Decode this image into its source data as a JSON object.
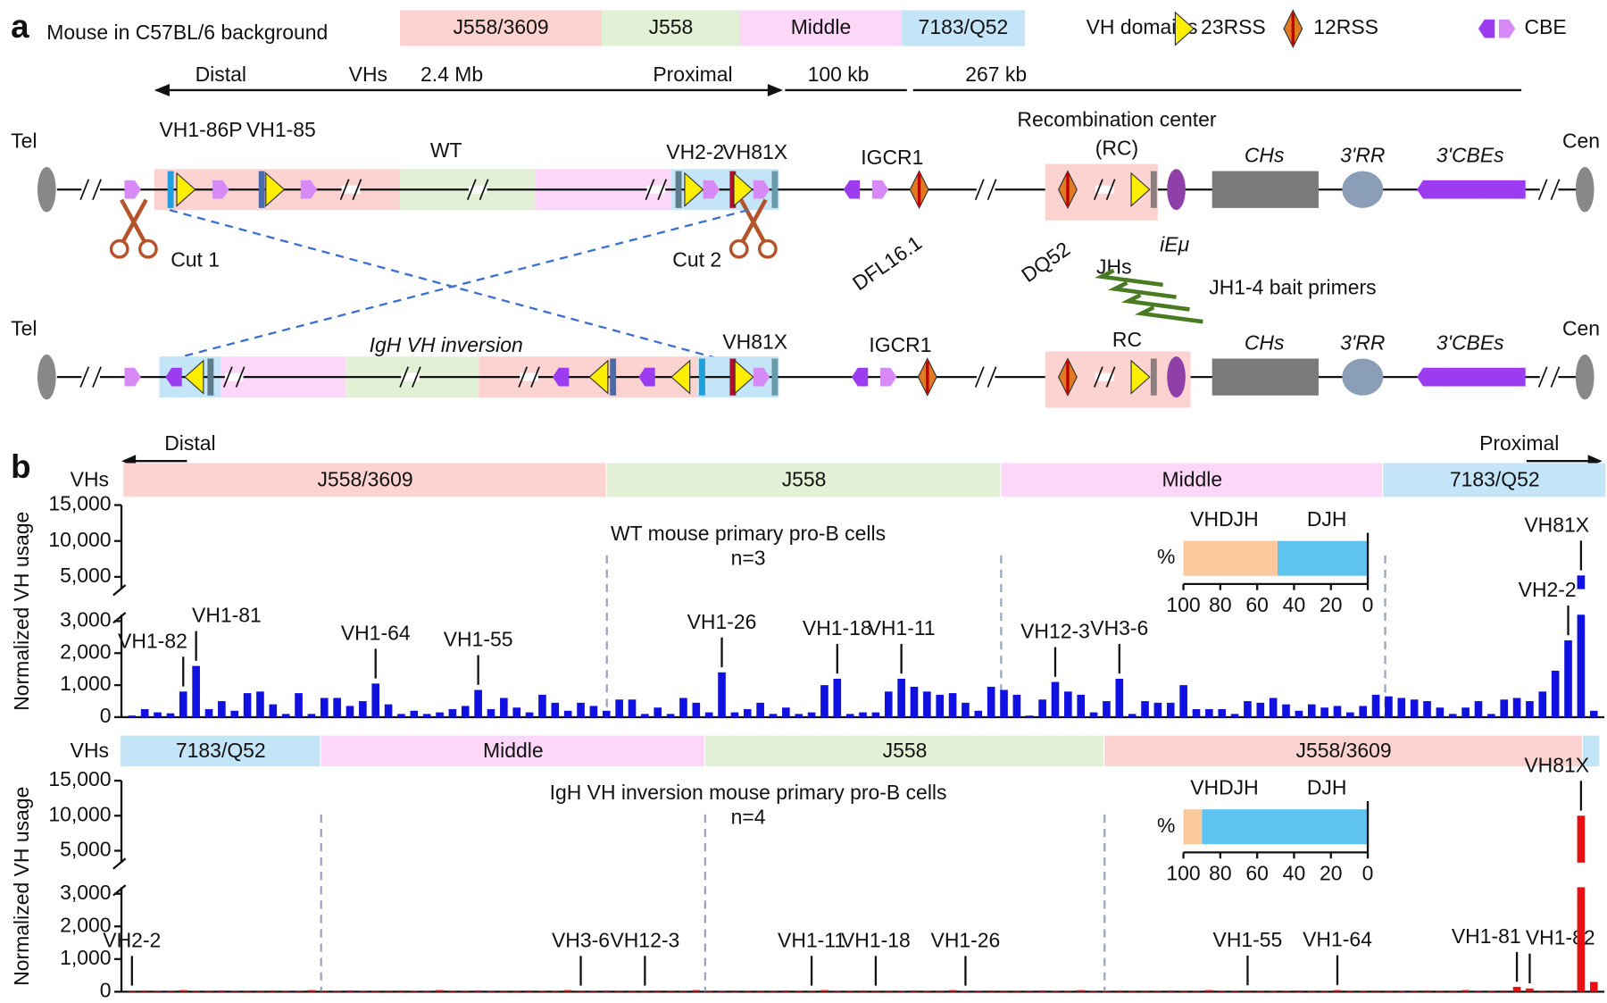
{
  "panel_a": {
    "label": "a",
    "background": "Mouse in C57BL/6 background",
    "domains": [
      "J558/3609",
      "J558",
      "Middle",
      "7183/Q52"
    ],
    "symbol_legend": [
      "VH domains",
      "23RSS",
      "12RSS",
      "CBE"
    ],
    "scale": [
      "Distal",
      "VHs",
      "2.4 Mb",
      "Proximal",
      "100 kb",
      "267 kb"
    ],
    "wt": {
      "tel": "Tel",
      "cen": "Cen",
      "genes": [
        "VH1-86P",
        "VH1-85",
        "VH2-2",
        "VH81X"
      ],
      "name": "WT",
      "igcr1": "IGCR1",
      "rc": "Recombination center",
      "rc_abbr": "(RC)",
      "ch": "CHs",
      "rr": "3'RR",
      "cbes": "3'CBEs",
      "cuts": [
        "Cut 1",
        "Cut 2"
      ],
      "dfl": "DFL16.1",
      "dq52": "DQ52",
      "jh": "JHs",
      "iemu": "iEμ",
      "primers": "JH1-4  bait primers"
    },
    "inversion": {
      "tel": "Tel",
      "cen": "Cen",
      "name": "IgH VH inversion",
      "gene": "VH81X",
      "igcr1": "IGCR1",
      "rc": "RC",
      "ch": "CHs",
      "rr": "3'RR",
      "cbes": "3'CBEs"
    }
  },
  "panel_b": {
    "label": "b",
    "distal": "Distal",
    "proximal": "Proximal"
  },
  "chart_data": [
    {
      "type": "bar",
      "title": "WT mouse primary pro-B cells",
      "subtitle": "n=3",
      "ylabel": "Normalized VH usage",
      "region_label": "VHs",
      "regions": [
        "J558/3609",
        "J558",
        "Middle",
        "7183/Q52"
      ],
      "color": "#1010e0",
      "ylim": [
        0,
        15000
      ],
      "ybreak": [
        3200,
        3300
      ],
      "yticks": [
        0,
        {
          "value": 1000,
          "label": "1,000"
        },
        {
          "value": 2000,
          "label": "2,000"
        },
        {
          "value": 3000,
          "label": "3,000"
        },
        {
          "value": 5000,
          "label": "5,000"
        },
        {
          "value": 10000,
          "label": "10,000"
        },
        {
          "value": 15000,
          "label": "15,000"
        }
      ],
      "categories": [
        null,
        null,
        null,
        null,
        "VH1-82",
        "VH1-81",
        null,
        null,
        null,
        null,
        null,
        null,
        null,
        null,
        null,
        null,
        null,
        null,
        null,
        "VH1-64",
        null,
        null,
        null,
        null,
        null,
        null,
        null,
        "VH1-55",
        null,
        null,
        null,
        null,
        null,
        null,
        null,
        null,
        null,
        null,
        null,
        null,
        null,
        null,
        null,
        null,
        null,
        null,
        "VH1-26",
        null,
        null,
        null,
        null,
        null,
        null,
        null,
        null,
        "VH1-18",
        null,
        null,
        null,
        null,
        "VH1-11",
        null,
        null,
        null,
        null,
        null,
        null,
        null,
        null,
        null,
        null,
        null,
        "VH12-3",
        null,
        null,
        null,
        null,
        "VH3-6",
        null,
        null,
        null,
        null,
        null,
        null,
        null,
        null,
        null,
        null,
        null,
        null,
        null,
        null,
        null,
        null,
        null,
        null,
        null,
        null,
        null,
        null,
        null,
        null,
        null,
        null,
        null,
        null,
        null,
        null,
        null,
        null,
        null,
        null,
        "VH2-2",
        "VH81X",
        null
      ],
      "values": [
        50,
        250,
        150,
        120,
        800,
        1600,
        250,
        500,
        200,
        750,
        800,
        400,
        100,
        750,
        100,
        600,
        600,
        350,
        500,
        1050,
        400,
        100,
        200,
        100,
        150,
        250,
        350,
        850,
        250,
        600,
        300,
        150,
        700,
        450,
        200,
        450,
        350,
        200,
        550,
        550,
        100,
        300,
        100,
        600,
        450,
        150,
        1400,
        150,
        250,
        450,
        100,
        300,
        100,
        150,
        1000,
        1200,
        100,
        150,
        150,
        800,
        1200,
        950,
        800,
        700,
        750,
        450,
        200,
        950,
        850,
        700,
        50,
        550,
        1100,
        800,
        700,
        150,
        500,
        1200,
        100,
        500,
        450,
        450,
        1000,
        250,
        250,
        250,
        100,
        500,
        450,
        600,
        400,
        200,
        400,
        300,
        350,
        150,
        350,
        700,
        650,
        600,
        550,
        500,
        300,
        100,
        300,
        500,
        100,
        550,
        600,
        500,
        800,
        1450,
        2400,
        5200,
        200
      ]
    },
    {
      "type": "hbar_stacked",
      "ylabel": "%",
      "xlim": [
        100,
        0
      ],
      "xticks": [
        100,
        80,
        60,
        40,
        20,
        0
      ],
      "series": [
        {
          "name": "VHDJH",
          "color": "#f9c89b",
          "values": [
            51
          ]
        },
        {
          "name": "DJH",
          "color": "#5ec3f0",
          "values": [
            49
          ]
        }
      ]
    },
    {
      "type": "bar",
      "title": "IgH VH inversion mouse primary pro-B cells",
      "subtitle": "n=4",
      "ylabel": "Normalized VH usage",
      "region_label": "VHs",
      "regions": [
        "7183/Q52",
        "Middle",
        "J558",
        "J558/3609"
      ],
      "color": "#e81010",
      "ylim": [
        0,
        15000
      ],
      "ybreak": [
        3200,
        3300
      ],
      "yticks": [
        0,
        {
          "value": 1000,
          "label": "1,000"
        },
        {
          "value": 2000,
          "label": "2,000"
        },
        {
          "value": 3000,
          "label": "3,000"
        },
        {
          "value": 5000,
          "label": "5,000"
        },
        {
          "value": 10000,
          "label": "10,000"
        },
        {
          "value": 15000,
          "label": "15,000"
        }
      ],
      "categories": [
        "VH2-2",
        null,
        null,
        null,
        null,
        null,
        null,
        null,
        null,
        null,
        null,
        null,
        null,
        null,
        null,
        null,
        null,
        null,
        null,
        null,
        null,
        null,
        null,
        null,
        null,
        null,
        null,
        null,
        null,
        null,
        null,
        null,
        null,
        null,
        null,
        "VH3-6",
        null,
        null,
        null,
        null,
        "VH12-3",
        null,
        null,
        null,
        null,
        null,
        null,
        null,
        null,
        null,
        null,
        null,
        null,
        "VH1-11",
        null,
        null,
        null,
        null,
        "VH1-18",
        null,
        null,
        null,
        null,
        null,
        null,
        "VH1-26",
        null,
        null,
        null,
        null,
        null,
        null,
        null,
        null,
        null,
        null,
        null,
        null,
        null,
        null,
        null,
        null,
        null,
        null,
        null,
        null,
        null,
        "VH1-55",
        null,
        null,
        null,
        null,
        null,
        null,
        "VH1-64",
        null,
        null,
        null,
        null,
        null,
        null,
        null,
        null,
        null,
        null,
        null,
        null,
        null,
        "VH1-81",
        "VH1-82",
        null,
        null,
        null,
        "VH81X",
        null
      ],
      "values": [
        30,
        40,
        20,
        30,
        50,
        30,
        20,
        40,
        30,
        30,
        30,
        40,
        20,
        30,
        50,
        30,
        20,
        40,
        30,
        30,
        30,
        40,
        20,
        30,
        50,
        30,
        20,
        40,
        30,
        30,
        30,
        40,
        20,
        30,
        50,
        30,
        20,
        40,
        30,
        30,
        30,
        40,
        20,
        30,
        50,
        30,
        20,
        40,
        30,
        30,
        30,
        40,
        20,
        30,
        50,
        30,
        20,
        40,
        30,
        30,
        30,
        40,
        20,
        30,
        50,
        30,
        20,
        40,
        30,
        30,
        30,
        40,
        20,
        30,
        50,
        30,
        20,
        40,
        30,
        30,
        30,
        40,
        20,
        30,
        50,
        30,
        20,
        40,
        30,
        30,
        30,
        40,
        20,
        30,
        50,
        30,
        20,
        40,
        30,
        30,
        30,
        40,
        20,
        30,
        50,
        30,
        20,
        40,
        150,
        100,
        30,
        40,
        30,
        10000,
        300
      ]
    },
    {
      "type": "hbar_stacked",
      "ylabel": "%",
      "xlim": [
        100,
        0
      ],
      "xticks": [
        100,
        80,
        60,
        40,
        20,
        0
      ],
      "series": [
        {
          "name": "VHDJH",
          "color": "#f9c89b",
          "values": [
            10
          ]
        },
        {
          "name": "DJH",
          "color": "#5ec3f0",
          "values": [
            90
          ]
        }
      ]
    }
  ]
}
